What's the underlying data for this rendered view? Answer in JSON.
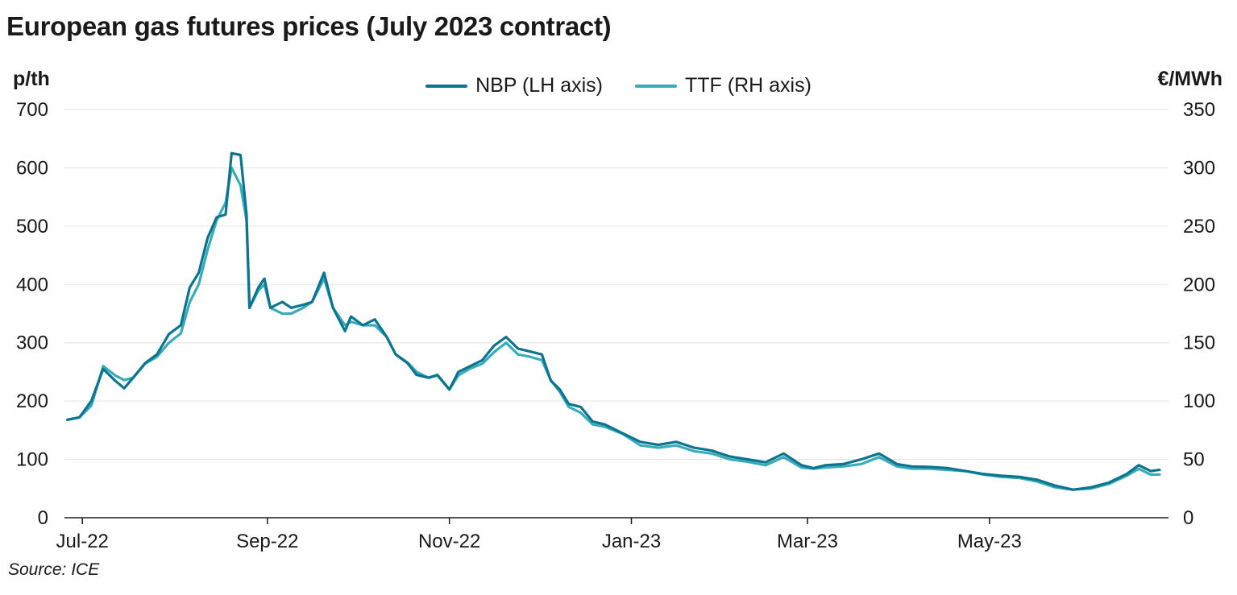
{
  "chart_data": {
    "type": "line",
    "title": "European gas futures prices (July 2023 contract)",
    "source": "Source: ICE",
    "ylabel_left": "p/th",
    "ylabel_right": "€/MWh",
    "ylim_left": [
      0,
      700
    ],
    "ylim_right": [
      0,
      350
    ],
    "yticks_left": [
      "0",
      "100",
      "200",
      "300",
      "400",
      "500",
      "600",
      "700"
    ],
    "yticks_right": [
      "0",
      "50",
      "100",
      "150",
      "200",
      "250",
      "300",
      "350"
    ],
    "xlim": [
      "2022-06-25",
      "2023-06-30"
    ],
    "xticks": [
      {
        "date": "2022-07-01",
        "label": "Jul-22"
      },
      {
        "date": "2022-09-01",
        "label": "Sep-22"
      },
      {
        "date": "2022-11-01",
        "label": "Nov-22"
      },
      {
        "date": "2023-01-01",
        "label": "Jan-23"
      },
      {
        "date": "2023-03-01",
        "label": "Mar-23"
      },
      {
        "date": "2023-05-01",
        "label": "May-23"
      }
    ],
    "grid": true,
    "legend_position": "top-center",
    "series": [
      {
        "name": "NBP (LH axis)",
        "axis": "left",
        "color": "#0b7590",
        "x": [
          "2022-06-26",
          "2022-06-30",
          "2022-07-04",
          "2022-07-08",
          "2022-07-12",
          "2022-07-15",
          "2022-07-18",
          "2022-07-22",
          "2022-07-26",
          "2022-07-30",
          "2022-08-03",
          "2022-08-06",
          "2022-08-09",
          "2022-08-12",
          "2022-08-15",
          "2022-08-18",
          "2022-08-20",
          "2022-08-23",
          "2022-08-25",
          "2022-08-26",
          "2022-08-29",
          "2022-08-31",
          "2022-09-02",
          "2022-09-06",
          "2022-09-09",
          "2022-09-13",
          "2022-09-16",
          "2022-09-20",
          "2022-09-23",
          "2022-09-27",
          "2022-09-29",
          "2022-10-03",
          "2022-10-07",
          "2022-10-11",
          "2022-10-14",
          "2022-10-18",
          "2022-10-21",
          "2022-10-25",
          "2022-10-28",
          "2022-11-01",
          "2022-11-04",
          "2022-11-08",
          "2022-11-12",
          "2022-11-16",
          "2022-11-20",
          "2022-11-24",
          "2022-11-28",
          "2022-12-02",
          "2022-12-05",
          "2022-12-08",
          "2022-12-11",
          "2022-12-15",
          "2022-12-19",
          "2022-12-23",
          "2022-12-29",
          "2023-01-04",
          "2023-01-10",
          "2023-01-16",
          "2023-01-22",
          "2023-01-28",
          "2023-02-03",
          "2023-02-09",
          "2023-02-15",
          "2023-02-21",
          "2023-02-27",
          "2023-03-03",
          "2023-03-07",
          "2023-03-13",
          "2023-03-19",
          "2023-03-25",
          "2023-03-31",
          "2023-04-05",
          "2023-04-11",
          "2023-04-17",
          "2023-04-23",
          "2023-04-29",
          "2023-05-05",
          "2023-05-11",
          "2023-05-17",
          "2023-05-23",
          "2023-05-29",
          "2023-06-04",
          "2023-06-10",
          "2023-06-16",
          "2023-06-20",
          "2023-06-24",
          "2023-06-27"
        ],
        "values": [
          168,
          172,
          200,
          255,
          235,
          222,
          240,
          265,
          280,
          315,
          330,
          395,
          420,
          480,
          515,
          520,
          625,
          622,
          520,
          360,
          395,
          410,
          360,
          370,
          360,
          365,
          370,
          420,
          360,
          320,
          345,
          330,
          340,
          310,
          280,
          265,
          245,
          240,
          245,
          220,
          250,
          260,
          270,
          295,
          310,
          290,
          285,
          280,
          235,
          220,
          195,
          190,
          165,
          160,
          145,
          130,
          125,
          130,
          120,
          115,
          105,
          100,
          95,
          110,
          90,
          85,
          90,
          92,
          100,
          110,
          92,
          88,
          87,
          85,
          80,
          75,
          72,
          70,
          65,
          55,
          48,
          52,
          60,
          75,
          90,
          80,
          82
        ]
      },
      {
        "name": "TTF (RH axis)",
        "axis": "right",
        "color": "#3aabb9",
        "x": [
          "2022-06-26",
          "2022-06-30",
          "2022-07-04",
          "2022-07-08",
          "2022-07-12",
          "2022-07-15",
          "2022-07-18",
          "2022-07-22",
          "2022-07-26",
          "2022-07-30",
          "2022-08-03",
          "2022-08-06",
          "2022-08-09",
          "2022-08-12",
          "2022-08-15",
          "2022-08-18",
          "2022-08-20",
          "2022-08-23",
          "2022-08-25",
          "2022-08-26",
          "2022-08-29",
          "2022-08-31",
          "2022-09-02",
          "2022-09-06",
          "2022-09-09",
          "2022-09-13",
          "2022-09-16",
          "2022-09-20",
          "2022-09-23",
          "2022-09-27",
          "2022-09-29",
          "2022-10-03",
          "2022-10-07",
          "2022-10-11",
          "2022-10-14",
          "2022-10-18",
          "2022-10-21",
          "2022-10-25",
          "2022-10-28",
          "2022-11-01",
          "2022-11-04",
          "2022-11-08",
          "2022-11-12",
          "2022-11-16",
          "2022-11-20",
          "2022-11-24",
          "2022-11-28",
          "2022-12-02",
          "2022-12-05",
          "2022-12-08",
          "2022-12-11",
          "2022-12-15",
          "2022-12-19",
          "2022-12-23",
          "2022-12-29",
          "2023-01-04",
          "2023-01-10",
          "2023-01-16",
          "2023-01-22",
          "2023-01-28",
          "2023-02-03",
          "2023-02-09",
          "2023-02-15",
          "2023-02-21",
          "2023-02-27",
          "2023-03-03",
          "2023-03-07",
          "2023-03-13",
          "2023-03-19",
          "2023-03-25",
          "2023-03-31",
          "2023-04-05",
          "2023-04-11",
          "2023-04-17",
          "2023-04-23",
          "2023-04-29",
          "2023-05-05",
          "2023-05-11",
          "2023-05-17",
          "2023-05-23",
          "2023-05-29",
          "2023-06-04",
          "2023-06-10",
          "2023-06-16",
          "2023-06-20",
          "2023-06-24",
          "2023-06-27"
        ],
        "values": [
          84,
          86,
          96,
          130,
          122,
          118,
          120,
          132,
          138,
          150,
          158,
          185,
          200,
          230,
          255,
          270,
          300,
          285,
          255,
          180,
          195,
          200,
          180,
          175,
          175,
          180,
          185,
          205,
          180,
          165,
          168,
          165,
          165,
          155,
          140,
          133,
          125,
          120,
          122,
          110,
          122,
          128,
          132,
          142,
          150,
          140,
          138,
          135,
          118,
          108,
          95,
          90,
          80,
          78,
          72,
          62,
          60,
          62,
          57,
          55,
          50,
          48,
          45,
          52,
          43,
          42,
          43,
          44,
          46,
          52,
          44,
          42,
          42,
          41,
          40,
          37,
          35,
          34,
          31,
          26,
          24,
          25,
          29,
          36,
          42,
          37,
          37
        ]
      }
    ]
  }
}
